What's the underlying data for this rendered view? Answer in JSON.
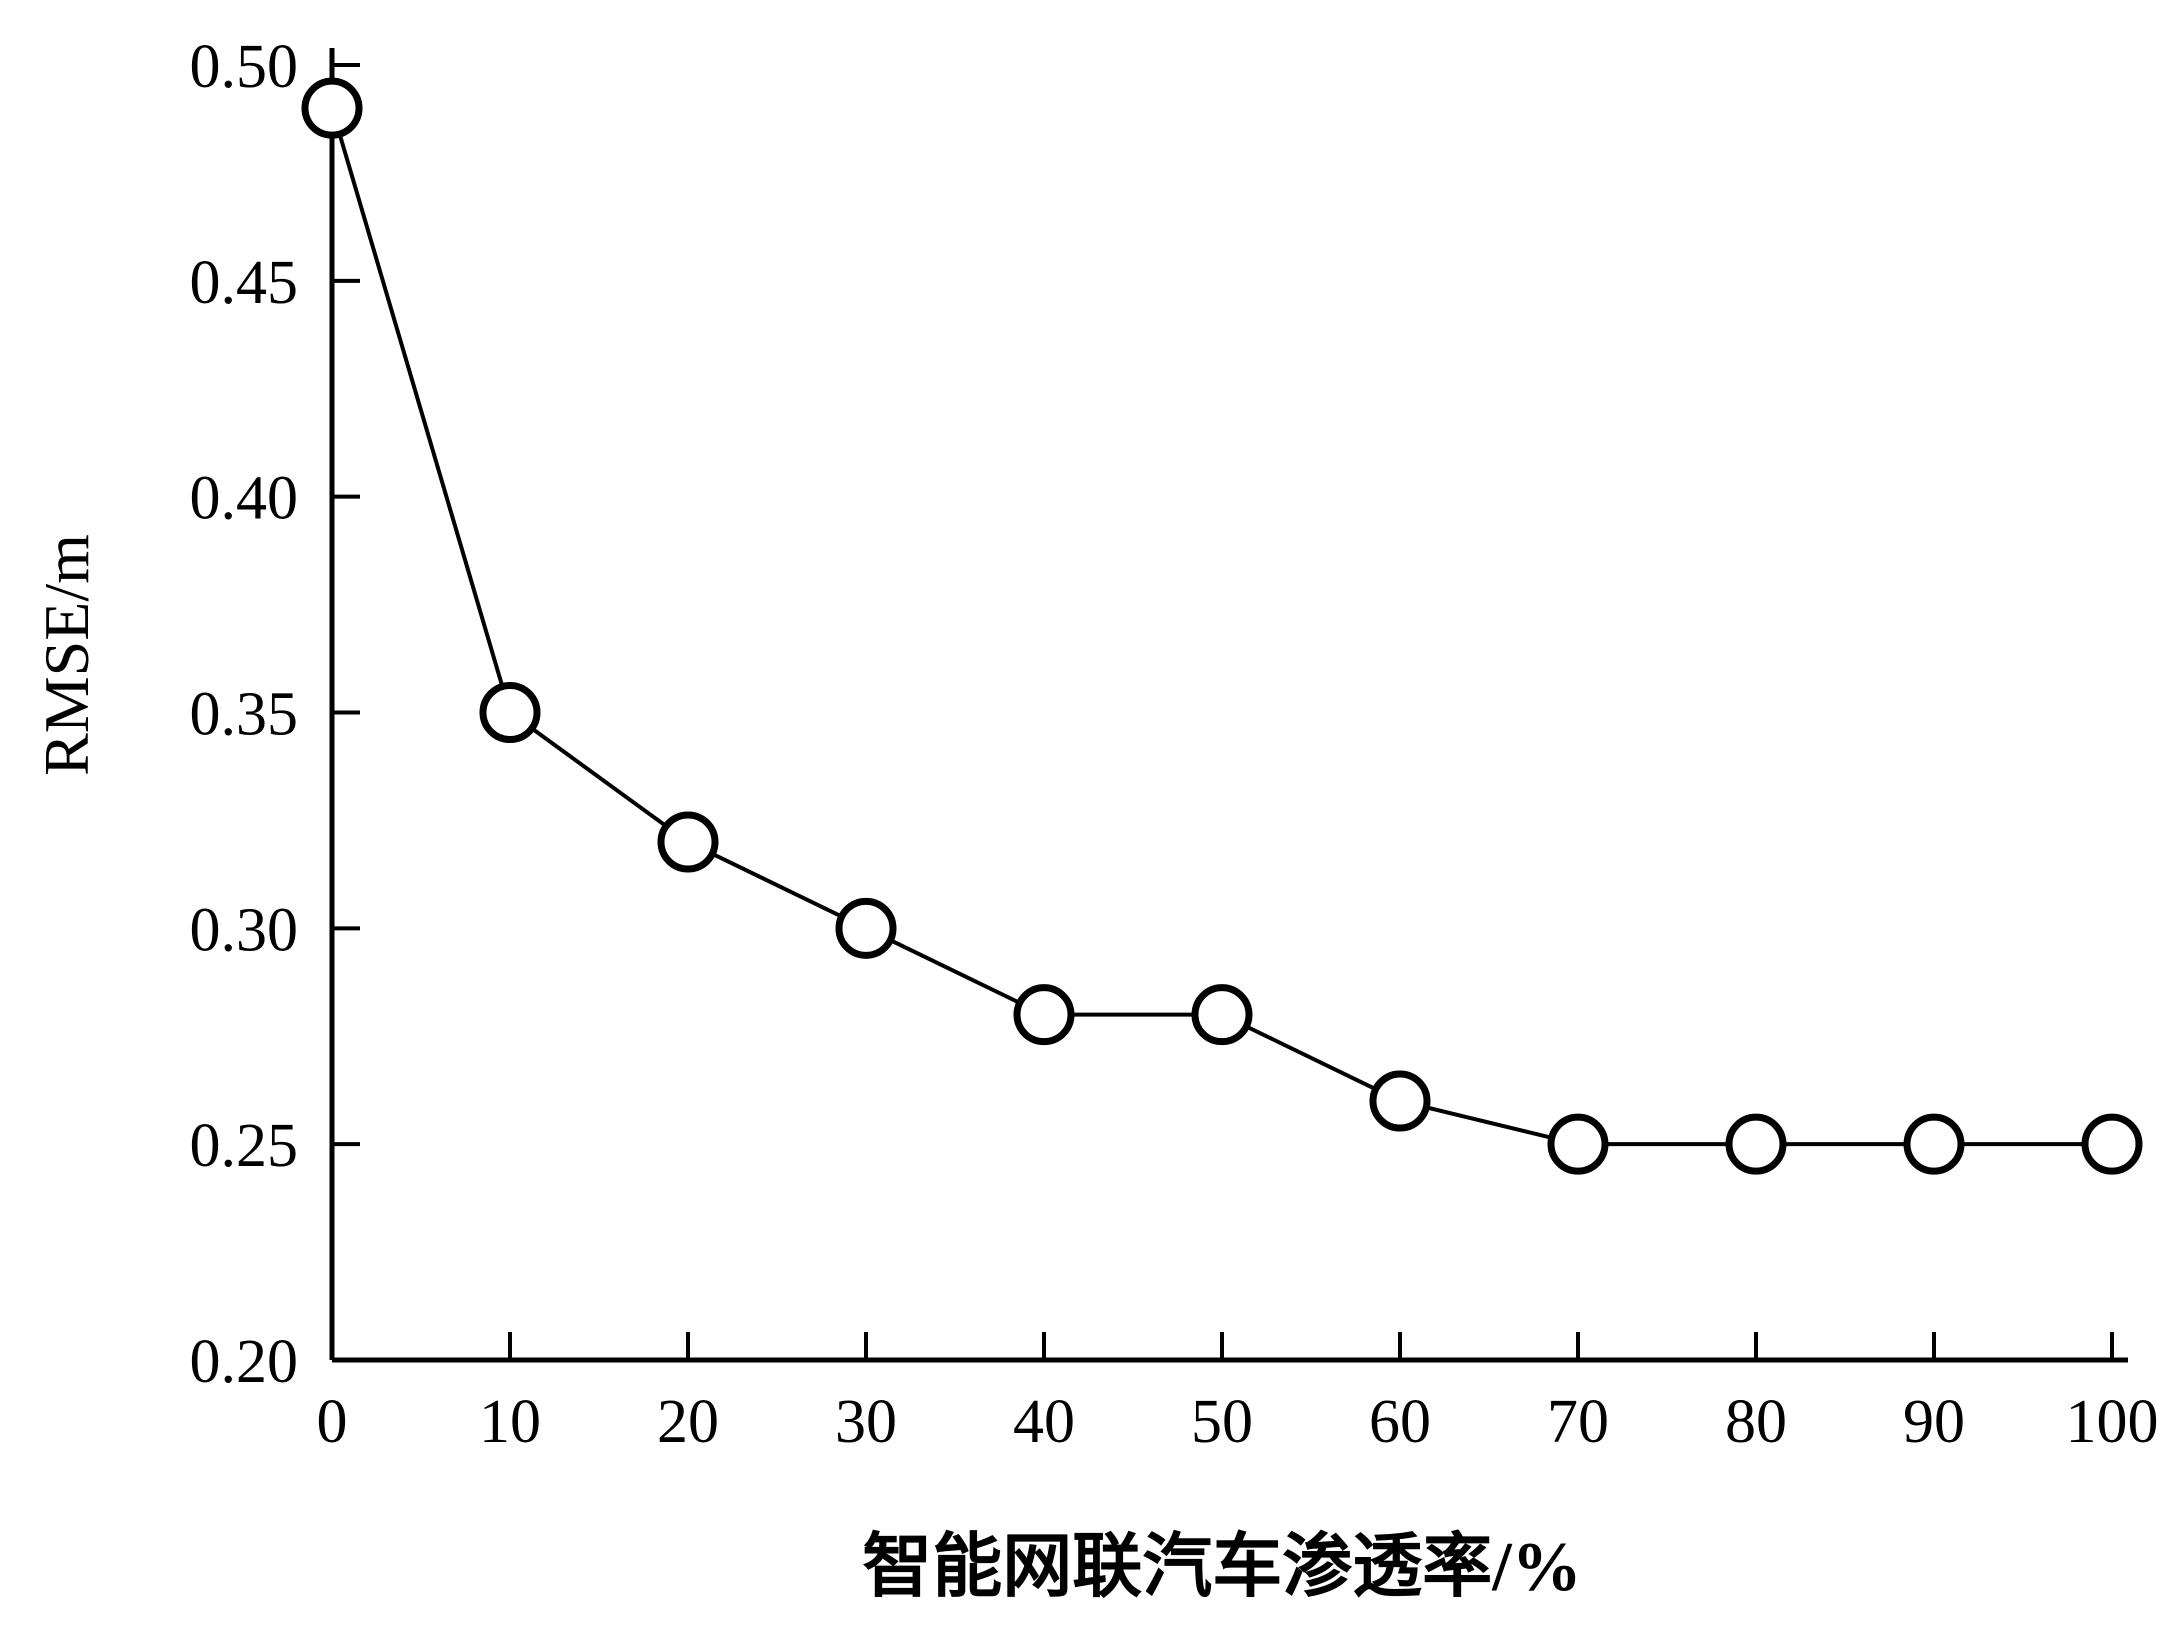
{
  "chart_data": {
    "type": "line",
    "title": "",
    "xlabel": "智能网联汽车渗透率/%",
    "ylabel": "RMSE/m",
    "x": [
      0,
      10,
      20,
      30,
      40,
      50,
      60,
      70,
      80,
      90,
      100
    ],
    "y": [
      0.49,
      0.35,
      0.32,
      0.3,
      0.28,
      0.28,
      0.26,
      0.25,
      0.25,
      0.25,
      0.25
    ],
    "series": [
      {
        "name": "RMSE",
        "values": [
          0.49,
          0.35,
          0.32,
          0.3,
          0.28,
          0.28,
          0.26,
          0.25,
          0.25,
          0.25,
          0.25
        ]
      }
    ],
    "xlim": [
      0,
      100
    ],
    "ylim": [
      0.2,
      0.5
    ],
    "xticks": [
      0,
      10,
      20,
      30,
      40,
      50,
      60,
      70,
      80,
      90,
      100
    ],
    "yticks": [
      0.2,
      0.25,
      0.3,
      0.35,
      0.4,
      0.45,
      0.5
    ],
    "marker": "open-circle",
    "line_color": "#000000",
    "marker_fill": "#ffffff",
    "background_color": "#ffffff",
    "grid": false,
    "legend_position": "none"
  }
}
